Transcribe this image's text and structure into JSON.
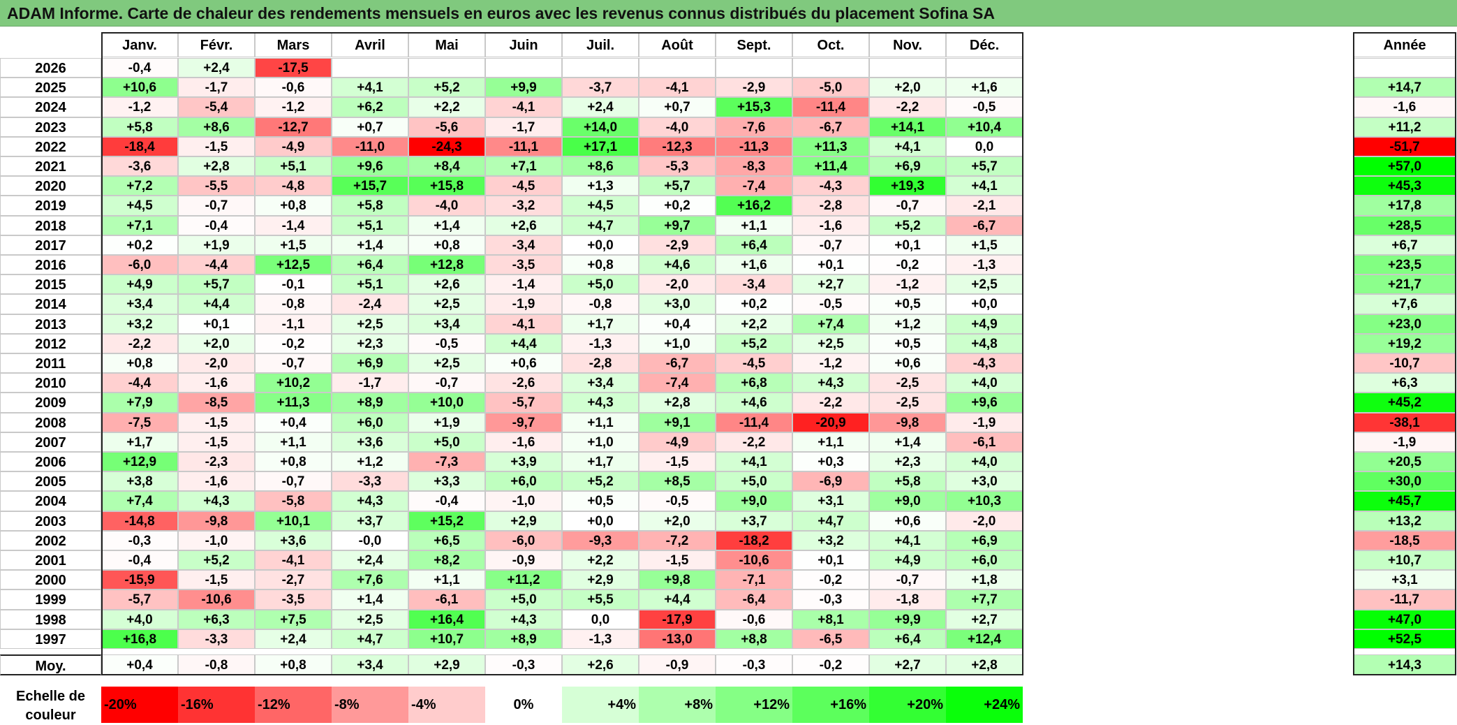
{
  "title": "ADAM Informe. Carte de chaleur des rendements mensuels en euros avec les revenus connus distribués du placement Sofina SA",
  "chart_data": {
    "type": "heatmap",
    "columns": [
      "Janv.",
      "Févr.",
      "Mars",
      "Avril",
      "Mai",
      "Juin",
      "Juil.",
      "Août",
      "Sept.",
      "Oct.",
      "Nov.",
      "Déc."
    ],
    "annee_header": "Année",
    "rows": [
      {
        "year": "2026",
        "months": [
          "-0,4",
          "+2,4",
          "-17,5",
          "",
          "",
          "",
          "",
          "",
          "",
          "",
          "",
          ""
        ],
        "annee": ""
      },
      {
        "year": "2025",
        "months": [
          "+10,6",
          "-1,7",
          "-0,6",
          "+4,1",
          "+5,2",
          "+9,9",
          "-3,7",
          "-4,1",
          "-2,9",
          "-5,0",
          "+2,0",
          "+1,6"
        ],
        "annee": "+14,7"
      },
      {
        "year": "2024",
        "months": [
          "-1,2",
          "-5,4",
          "-1,2",
          "+6,2",
          "+2,2",
          "-4,1",
          "+2,4",
          "+0,7",
          "+15,3",
          "-11,4",
          "-2,2",
          "-0,5"
        ],
        "annee": "-1,6"
      },
      {
        "year": "2023",
        "months": [
          "+5,8",
          "+8,6",
          "-12,7",
          "+0,7",
          "-5,6",
          "-1,7",
          "+14,0",
          "-4,0",
          "-7,6",
          "-6,7",
          "+14,1",
          "+10,4"
        ],
        "annee": "+11,2"
      },
      {
        "year": "2022",
        "months": [
          "-18,4",
          "-1,5",
          "-4,9",
          "-11,0",
          "-24,3",
          "-11,1",
          "+17,1",
          "-12,3",
          "-11,3",
          "+11,3",
          "+4,1",
          "0,0"
        ],
        "annee": "-51,7"
      },
      {
        "year": "2021",
        "months": [
          "-3,6",
          "+2,8",
          "+5,1",
          "+9,6",
          "+8,4",
          "+7,1",
          "+8,6",
          "-5,3",
          "-8,3",
          "+11,4",
          "+6,9",
          "+5,7"
        ],
        "annee": "+57,0"
      },
      {
        "year": "2020",
        "months": [
          "+7,2",
          "-5,5",
          "-4,8",
          "+15,7",
          "+15,8",
          "-4,5",
          "+1,3",
          "+5,7",
          "-7,4",
          "-4,3",
          "+19,3",
          "+4,1"
        ],
        "annee": "+45,3"
      },
      {
        "year": "2019",
        "months": [
          "+4,5",
          "-0,7",
          "+0,8",
          "+5,8",
          "-4,0",
          "-3,2",
          "+4,5",
          "+0,2",
          "+16,2",
          "-2,8",
          "-0,7",
          "-2,1"
        ],
        "annee": "+17,8"
      },
      {
        "year": "2018",
        "months": [
          "+7,1",
          "-0,4",
          "-1,4",
          "+5,1",
          "+1,4",
          "+2,6",
          "+4,7",
          "+9,7",
          "+1,1",
          "-1,6",
          "+5,2",
          "-6,7"
        ],
        "annee": "+28,5"
      },
      {
        "year": "2017",
        "months": [
          "+0,2",
          "+1,9",
          "+1,5",
          "+1,4",
          "+0,8",
          "-3,4",
          "+0,0",
          "-2,9",
          "+6,4",
          "-0,7",
          "+0,1",
          "+1,5"
        ],
        "annee": "+6,7"
      },
      {
        "year": "2016",
        "months": [
          "-6,0",
          "-4,4",
          "+12,5",
          "+6,4",
          "+12,8",
          "-3,5",
          "+0,8",
          "+4,6",
          "+1,6",
          "+0,1",
          "-0,2",
          "-1,3"
        ],
        "annee": "+23,5"
      },
      {
        "year": "2015",
        "months": [
          "+4,9",
          "+5,7",
          "-0,1",
          "+5,1",
          "+2,6",
          "-1,4",
          "+5,0",
          "-2,0",
          "-3,4",
          "+2,7",
          "-1,2",
          "+2,5"
        ],
        "annee": "+21,7"
      },
      {
        "year": "2014",
        "months": [
          "+3,4",
          "+4,4",
          "-0,8",
          "-2,4",
          "+2,5",
          "-1,9",
          "-0,8",
          "+3,0",
          "+0,2",
          "-0,5",
          "+0,5",
          "+0,0"
        ],
        "annee": "+7,6"
      },
      {
        "year": "2013",
        "months": [
          "+3,2",
          "+0,1",
          "-1,1",
          "+2,5",
          "+3,4",
          "-4,1",
          "+1,7",
          "+0,4",
          "+2,2",
          "+7,4",
          "+1,2",
          "+4,9"
        ],
        "annee": "+23,0"
      },
      {
        "year": "2012",
        "months": [
          "-2,2",
          "+2,0",
          "-0,2",
          "+2,3",
          "-0,5",
          "+4,4",
          "-1,3",
          "+1,0",
          "+5,2",
          "+2,5",
          "+0,5",
          "+4,8"
        ],
        "annee": "+19,2"
      },
      {
        "year": "2011",
        "months": [
          "+0,8",
          "-2,0",
          "-0,7",
          "+6,9",
          "+2,5",
          "+0,6",
          "-2,8",
          "-6,7",
          "-4,5",
          "-1,2",
          "+0,6",
          "-4,3"
        ],
        "annee": "-10,7"
      },
      {
        "year": "2010",
        "months": [
          "-4,4",
          "-1,6",
          "+10,2",
          "-1,7",
          "-0,7",
          "-2,6",
          "+3,4",
          "-7,4",
          "+6,8",
          "+4,3",
          "-2,5",
          "+4,0"
        ],
        "annee": "+6,3"
      },
      {
        "year": "2009",
        "months": [
          "+7,9",
          "-8,5",
          "+11,3",
          "+8,9",
          "+10,0",
          "-5,7",
          "+4,3",
          "+2,8",
          "+4,6",
          "-2,2",
          "-2,5",
          "+9,6"
        ],
        "annee": "+45,2"
      },
      {
        "year": "2008",
        "months": [
          "-7,5",
          "-1,5",
          "+0,4",
          "+6,0",
          "+1,9",
          "-9,7",
          "+1,1",
          "+9,1",
          "-11,4",
          "-20,9",
          "-9,8",
          "-1,9"
        ],
        "annee": "-38,1"
      },
      {
        "year": "2007",
        "months": [
          "+1,7",
          "-1,5",
          "+1,1",
          "+3,6",
          "+5,0",
          "-1,6",
          "+1,0",
          "-4,9",
          "-2,2",
          "+1,1",
          "+1,4",
          "-6,1"
        ],
        "annee": "-1,9"
      },
      {
        "year": "2006",
        "months": [
          "+12,9",
          "-2,3",
          "+0,8",
          "+1,2",
          "-7,3",
          "+3,9",
          "+1,7",
          "-1,5",
          "+4,1",
          "+0,3",
          "+2,3",
          "+4,0"
        ],
        "annee": "+20,5"
      },
      {
        "year": "2005",
        "months": [
          "+3,8",
          "-1,6",
          "-0,7",
          "-3,3",
          "+3,3",
          "+6,0",
          "+5,2",
          "+8,5",
          "+5,0",
          "-6,9",
          "+5,8",
          "+3,0"
        ],
        "annee": "+30,0"
      },
      {
        "year": "2004",
        "months": [
          "+7,4",
          "+4,3",
          "-5,8",
          "+4,3",
          "-0,4",
          "-1,0",
          "+0,5",
          "-0,5",
          "+9,0",
          "+3,1",
          "+9,0",
          "+10,3"
        ],
        "annee": "+45,7"
      },
      {
        "year": "2003",
        "months": [
          "-14,8",
          "-9,8",
          "+10,1",
          "+3,7",
          "+15,2",
          "+2,9",
          "+0,0",
          "+2,0",
          "+3,7",
          "+4,7",
          "+0,6",
          "-2,0"
        ],
        "annee": "+13,2"
      },
      {
        "year": "2002",
        "months": [
          "-0,3",
          "-1,0",
          "+3,6",
          "-0,0",
          "+6,5",
          "-6,0",
          "-9,3",
          "-7,2",
          "-18,2",
          "+3,2",
          "+4,1",
          "+6,9"
        ],
        "annee": "-18,5"
      },
      {
        "year": "2001",
        "months": [
          "-0,4",
          "+5,2",
          "-4,1",
          "+2,4",
          "+8,2",
          "-0,9",
          "+2,2",
          "-1,5",
          "-10,6",
          "+0,1",
          "+4,9",
          "+6,0"
        ],
        "annee": "+10,7"
      },
      {
        "year": "2000",
        "months": [
          "-15,9",
          "-1,5",
          "-2,7",
          "+7,6",
          "+1,1",
          "+11,2",
          "+2,9",
          "+9,8",
          "-7,1",
          "-0,2",
          "-0,7",
          "+1,8"
        ],
        "annee": "+3,1"
      },
      {
        "year": "1999",
        "months": [
          "-5,7",
          "-10,6",
          "-3,5",
          "+1,4",
          "-6,1",
          "+5,0",
          "+5,5",
          "+4,4",
          "-6,4",
          "-0,3",
          "-1,8",
          "+7,7"
        ],
        "annee": "-11,7"
      },
      {
        "year": "1998",
        "months": [
          "+4,0",
          "+6,3",
          "+7,5",
          "+2,5",
          "+16,4",
          "+4,3",
          "0,0",
          "-17,9",
          "-0,6",
          "+8,1",
          "+9,9",
          "+2,7"
        ],
        "annee": "+47,0"
      },
      {
        "year": "1997",
        "months": [
          "+16,8",
          "-3,3",
          "+2,4",
          "+4,7",
          "+10,7",
          "+8,9",
          "-1,3",
          "-13,0",
          "+8,8",
          "-6,5",
          "+6,4",
          "+12,4"
        ],
        "annee": "+52,5"
      }
    ],
    "moy": {
      "label": "Moy.",
      "months": [
        "+0,4",
        "-0,8",
        "+0,8",
        "+3,4",
        "+2,9",
        "-0,3",
        "+2,6",
        "-0,9",
        "-0,3",
        "-0,2",
        "+2,7",
        "+2,8"
      ],
      "annee": "+14,3"
    },
    "scale": {
      "label_line1": "Echelle de",
      "label_line2": "couleur",
      "items": [
        {
          "label": "-20%",
          "value": -20,
          "color": "#ff0000"
        },
        {
          "label": "-16%",
          "value": -16,
          "color": "#ff3333"
        },
        {
          "label": "-12%",
          "value": -12,
          "color": "#ff6666"
        },
        {
          "label": "-8%",
          "value": -8,
          "color": "#ff9999"
        },
        {
          "label": "-4%",
          "value": -4,
          "color": "#ffcccc"
        },
        {
          "label": "0%",
          "value": 0,
          "color": "#ffffff"
        },
        {
          "label": "+4%",
          "value": 4,
          "color": "#d6ffd6"
        },
        {
          "label": "+8%",
          "value": 8,
          "color": "#adffad"
        },
        {
          "label": "+12%",
          "value": 12,
          "color": "#85ff85"
        },
        {
          "label": "+16%",
          "value": 16,
          "color": "#5cff5c"
        },
        {
          "label": "+20%",
          "value": 20,
          "color": "#33ff33"
        },
        {
          "label": "+24%",
          "value": 24,
          "color": "#0aff0a"
        }
      ]
    }
  },
  "colors": {
    "title_bg": "#80c97e",
    "neg_max": "#ff0000",
    "neutral": "#ffffff",
    "pos_max": "#00ff00"
  }
}
